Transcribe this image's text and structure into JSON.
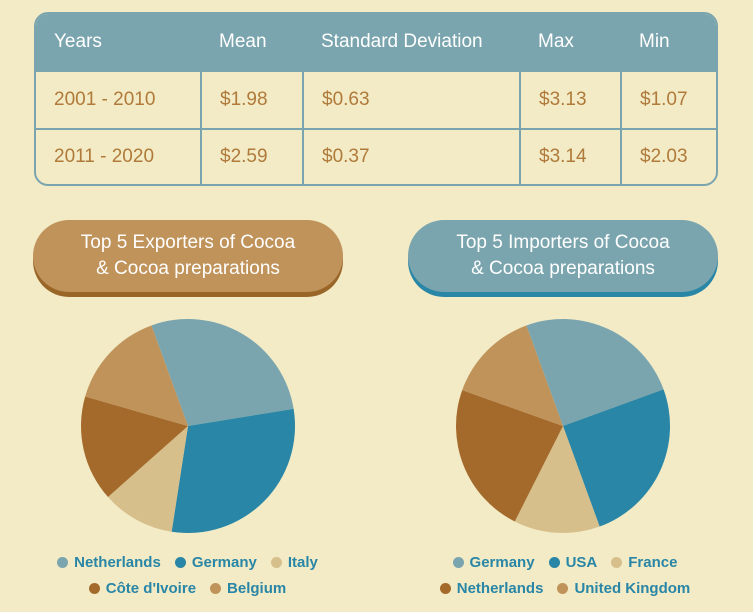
{
  "table": {
    "headers": [
      "Years",
      "Mean",
      "Standard Deviation",
      "Max",
      "Min"
    ],
    "rows": [
      [
        "2001 - 2010",
        "$1.98",
        "$0.63",
        "$3.13",
        "$1.07"
      ],
      [
        "2011 - 2020",
        "$2.59",
        "$0.37",
        "$3.14",
        "$2.03"
      ]
    ]
  },
  "chart_data": [
    {
      "type": "pie",
      "title_line1": "Top 5 Exporters of Cocoa",
      "title_line2": "& Cocoa preparations",
      "legend_position": "bottom",
      "labels": [
        "Netherlands",
        "Germany",
        "Italy",
        "Côte d'Ivoire",
        "Belgium"
      ],
      "values": [
        28,
        30,
        11,
        16,
        15
      ],
      "colors": [
        "#7aa5ae",
        "#2986a6",
        "#d7bf8c",
        "#a46a2c",
        "#c0935b"
      ]
    },
    {
      "type": "pie",
      "title_line1": "Top 5 Importers of Cocoa",
      "title_line2": "& Cocoa preparations",
      "legend_position": "bottom",
      "labels": [
        "Germany",
        "USA",
        "France",
        "Netherlands",
        "United Kingdom"
      ],
      "values": [
        25,
        25,
        13,
        23,
        14
      ],
      "colors": [
        "#7aa5ae",
        "#2986a6",
        "#d7bf8c",
        "#a46a2c",
        "#c0935b"
      ]
    }
  ],
  "colors": {
    "background": "#f2ebc6",
    "table_accent": "#7aa5ae",
    "table_text": "#b07a3a"
  }
}
